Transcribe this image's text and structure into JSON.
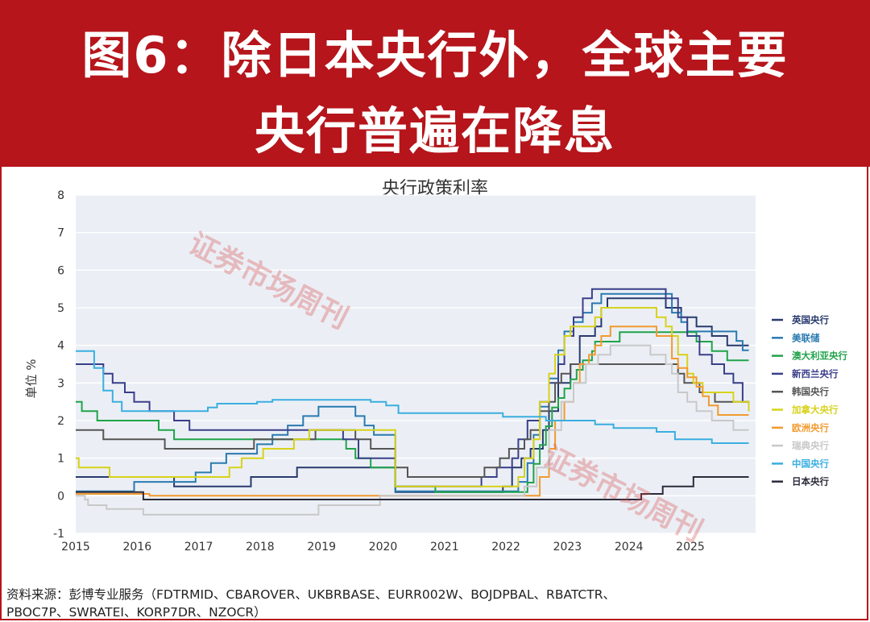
{
  "header": {
    "line1": "图6：除日本央行外，全球主要",
    "line2": "央行普遍在降息"
  },
  "watermark": "证券市场周刊",
  "source": {
    "line1": "资料来源：彭博专业服务（FDTRMID、CBAROVER、UKBRBASE、EURR002W、BOJDPBAL、RBATCTR、",
    "line2": "PBOC7P、SWRATEI、KORP7DR、NZOCR）"
  },
  "chart_data": {
    "type": "line",
    "title": "央行政策利率",
    "ylabel": "单位 %",
    "xlabel": "",
    "xlim": [
      2015,
      2026
    ],
    "ylim": [
      -1,
      8
    ],
    "x_ticks": [
      "2015",
      "2016",
      "2017",
      "2018",
      "2019",
      "2020",
      "2021",
      "2022",
      "2023",
      "2024",
      "2025"
    ],
    "y_ticks": [
      "8",
      "7",
      "6",
      "5",
      "4",
      "3",
      "2",
      "1",
      "0",
      "-1"
    ],
    "grid": "horizontal",
    "legend": "right",
    "series": [
      {
        "name": "英国央行",
        "color": "#283a6e",
        "points": [
          [
            2015,
            0.5
          ],
          [
            2016.6,
            0.25
          ],
          [
            2017.85,
            0.5
          ],
          [
            2018.6,
            0.75
          ],
          [
            2020.2,
            0.1
          ],
          [
            2021.95,
            0.25
          ],
          [
            2022.1,
            0.75
          ],
          [
            2022.25,
            1.0
          ],
          [
            2022.4,
            1.25
          ],
          [
            2022.6,
            1.75
          ],
          [
            2022.7,
            2.25
          ],
          [
            2022.85,
            3.0
          ],
          [
            2023.05,
            3.5
          ],
          [
            2023.2,
            4.25
          ],
          [
            2023.45,
            4.5
          ],
          [
            2023.55,
            5.0
          ],
          [
            2023.65,
            5.25
          ],
          [
            2024.6,
            5.0
          ],
          [
            2024.85,
            4.75
          ],
          [
            2025.1,
            4.5
          ],
          [
            2025.35,
            4.25
          ],
          [
            2025.6,
            4.0
          ],
          [
            2025.95,
            4.0
          ]
        ]
      },
      {
        "name": "美联储",
        "color": "#2a7ab0",
        "points": [
          [
            2015,
            0.12
          ],
          [
            2015.95,
            0.37
          ],
          [
            2016.95,
            0.62
          ],
          [
            2017.2,
            0.87
          ],
          [
            2017.45,
            1.12
          ],
          [
            2017.95,
            1.37
          ],
          [
            2018.2,
            1.62
          ],
          [
            2018.45,
            1.87
          ],
          [
            2018.7,
            2.12
          ],
          [
            2018.95,
            2.37
          ],
          [
            2019.55,
            2.12
          ],
          [
            2019.7,
            1.87
          ],
          [
            2019.85,
            1.62
          ],
          [
            2020.2,
            0.12
          ],
          [
            2022.2,
            0.37
          ],
          [
            2022.35,
            0.87
          ],
          [
            2022.45,
            1.62
          ],
          [
            2022.55,
            2.37
          ],
          [
            2022.7,
            3.12
          ],
          [
            2022.85,
            3.87
          ],
          [
            2022.95,
            4.37
          ],
          [
            2023.1,
            4.62
          ],
          [
            2023.25,
            4.87
          ],
          [
            2023.4,
            5.12
          ],
          [
            2023.55,
            5.37
          ],
          [
            2024.7,
            4.87
          ],
          [
            2024.85,
            4.62
          ],
          [
            2024.95,
            4.37
          ],
          [
            2025.75,
            4.12
          ],
          [
            2025.85,
            3.87
          ],
          [
            2025.95,
            3.87
          ]
        ]
      },
      {
        "name": "澳大利亚央行",
        "color": "#1fa34a",
        "points": [
          [
            2015,
            2.5
          ],
          [
            2015.1,
            2.25
          ],
          [
            2015.35,
            2.0
          ],
          [
            2016.35,
            1.75
          ],
          [
            2016.6,
            1.5
          ],
          [
            2019.4,
            1.25
          ],
          [
            2019.55,
            1.0
          ],
          [
            2019.8,
            0.75
          ],
          [
            2020.2,
            0.25
          ],
          [
            2020.85,
            0.1
          ],
          [
            2022.35,
            0.35
          ],
          [
            2022.45,
            0.85
          ],
          [
            2022.55,
            1.35
          ],
          [
            2022.65,
            1.85
          ],
          [
            2022.75,
            2.35
          ],
          [
            2022.85,
            2.6
          ],
          [
            2022.95,
            2.85
          ],
          [
            2023.05,
            3.1
          ],
          [
            2023.15,
            3.35
          ],
          [
            2023.25,
            3.6
          ],
          [
            2023.4,
            3.85
          ],
          [
            2023.45,
            4.1
          ],
          [
            2023.85,
            4.35
          ],
          [
            2025.1,
            4.1
          ],
          [
            2025.35,
            3.85
          ],
          [
            2025.6,
            3.6
          ],
          [
            2025.95,
            3.6
          ]
        ]
      },
      {
        "name": "新西兰央行",
        "color": "#3a3f8a",
        "points": [
          [
            2015,
            3.5
          ],
          [
            2015.45,
            3.25
          ],
          [
            2015.6,
            3.0
          ],
          [
            2015.8,
            2.75
          ],
          [
            2015.95,
            2.5
          ],
          [
            2016.2,
            2.25
          ],
          [
            2016.6,
            2.0
          ],
          [
            2016.85,
            1.75
          ],
          [
            2019.35,
            1.5
          ],
          [
            2019.6,
            1.0
          ],
          [
            2020.2,
            0.25
          ],
          [
            2021.6,
            0.5
          ],
          [
            2021.85,
            0.75
          ],
          [
            2022.1,
            1.0
          ],
          [
            2022.2,
            1.5
          ],
          [
            2022.35,
            2.0
          ],
          [
            2022.55,
            2.5
          ],
          [
            2022.7,
            3.0
          ],
          [
            2022.85,
            3.5
          ],
          [
            2022.95,
            4.25
          ],
          [
            2023.1,
            4.75
          ],
          [
            2023.25,
            5.25
          ],
          [
            2023.4,
            5.5
          ],
          [
            2024.6,
            5.25
          ],
          [
            2024.8,
            4.75
          ],
          [
            2024.95,
            4.25
          ],
          [
            2025.15,
            3.75
          ],
          [
            2025.35,
            3.5
          ],
          [
            2025.55,
            3.25
          ],
          [
            2025.7,
            3.0
          ],
          [
            2025.85,
            2.5
          ],
          [
            2025.95,
            2.25
          ]
        ]
      },
      {
        "name": "韩国央行",
        "color": "#555555",
        "points": [
          [
            2015,
            1.75
          ],
          [
            2015.45,
            1.5
          ],
          [
            2016.45,
            1.25
          ],
          [
            2017.9,
            1.5
          ],
          [
            2018.9,
            1.75
          ],
          [
            2019.55,
            1.5
          ],
          [
            2019.8,
            1.25
          ],
          [
            2020.2,
            0.75
          ],
          [
            2020.4,
            0.5
          ],
          [
            2021.65,
            0.75
          ],
          [
            2021.9,
            1.0
          ],
          [
            2022.05,
            1.25
          ],
          [
            2022.3,
            1.5
          ],
          [
            2022.4,
            1.75
          ],
          [
            2022.55,
            2.25
          ],
          [
            2022.7,
            2.5
          ],
          [
            2022.8,
            3.0
          ],
          [
            2022.9,
            3.25
          ],
          [
            2023.05,
            3.5
          ],
          [
            2024.8,
            3.25
          ],
          [
            2024.9,
            3.0
          ],
          [
            2025.15,
            2.75
          ],
          [
            2025.4,
            2.5
          ],
          [
            2025.95,
            2.5
          ]
        ]
      },
      {
        "name": "加拿大央行",
        "color": "#d7d21a",
        "points": [
          [
            2015,
            1.0
          ],
          [
            2015.05,
            0.75
          ],
          [
            2015.55,
            0.5
          ],
          [
            2017.5,
            0.75
          ],
          [
            2017.7,
            1.0
          ],
          [
            2018.05,
            1.25
          ],
          [
            2018.55,
            1.5
          ],
          [
            2018.8,
            1.75
          ],
          [
            2020.2,
            0.25
          ],
          [
            2022.2,
            0.5
          ],
          [
            2022.3,
            1.0
          ],
          [
            2022.45,
            1.5
          ],
          [
            2022.55,
            2.5
          ],
          [
            2022.7,
            3.25
          ],
          [
            2022.8,
            3.75
          ],
          [
            2022.95,
            4.25
          ],
          [
            2023.05,
            4.5
          ],
          [
            2023.45,
            4.75
          ],
          [
            2023.55,
            5.0
          ],
          [
            2024.45,
            4.75
          ],
          [
            2024.6,
            4.5
          ],
          [
            2024.7,
            4.25
          ],
          [
            2024.8,
            3.75
          ],
          [
            2024.95,
            3.25
          ],
          [
            2025.05,
            3.0
          ],
          [
            2025.2,
            2.75
          ],
          [
            2025.7,
            2.5
          ],
          [
            2025.95,
            2.25
          ]
        ]
      },
      {
        "name": "欧洲央行",
        "color": "#f29a2e",
        "points": [
          [
            2015,
            0.05
          ],
          [
            2016.2,
            0.0
          ],
          [
            2022.55,
            0.5
          ],
          [
            2022.7,
            1.25
          ],
          [
            2022.8,
            2.0
          ],
          [
            2022.95,
            2.5
          ],
          [
            2023.1,
            3.0
          ],
          [
            2023.2,
            3.5
          ],
          [
            2023.35,
            3.75
          ],
          [
            2023.45,
            4.0
          ],
          [
            2023.55,
            4.25
          ],
          [
            2023.7,
            4.5
          ],
          [
            2024.45,
            4.25
          ],
          [
            2024.7,
            3.65
          ],
          [
            2024.8,
            3.4
          ],
          [
            2024.95,
            3.15
          ],
          [
            2025.1,
            2.9
          ],
          [
            2025.2,
            2.65
          ],
          [
            2025.3,
            2.4
          ],
          [
            2025.45,
            2.15
          ],
          [
            2025.95,
            2.15
          ]
        ]
      },
      {
        "name": "瑞典央行",
        "color": "#c8c8c8",
        "points": [
          [
            2015,
            0.0
          ],
          [
            2015.15,
            -0.1
          ],
          [
            2015.2,
            -0.25
          ],
          [
            2015.5,
            -0.35
          ],
          [
            2016.1,
            -0.5
          ],
          [
            2018.95,
            -0.25
          ],
          [
            2019.95,
            0.0
          ],
          [
            2022.3,
            0.25
          ],
          [
            2022.5,
            0.75
          ],
          [
            2022.7,
            1.75
          ],
          [
            2022.9,
            2.5
          ],
          [
            2023.1,
            3.0
          ],
          [
            2023.3,
            3.5
          ],
          [
            2023.5,
            3.75
          ],
          [
            2023.7,
            4.0
          ],
          [
            2024.35,
            3.75
          ],
          [
            2024.6,
            3.5
          ],
          [
            2024.7,
            3.25
          ],
          [
            2024.8,
            2.75
          ],
          [
            2024.95,
            2.5
          ],
          [
            2025.1,
            2.25
          ],
          [
            2025.35,
            2.0
          ],
          [
            2025.7,
            1.75
          ],
          [
            2025.95,
            1.75
          ]
        ]
      },
      {
        "name": "中国央行",
        "color": "#3aaee0",
        "points": [
          [
            2015,
            3.85
          ],
          [
            2015.3,
            3.4
          ],
          [
            2015.45,
            2.8
          ],
          [
            2015.6,
            2.5
          ],
          [
            2015.75,
            2.25
          ],
          [
            2017.15,
            2.35
          ],
          [
            2017.3,
            2.45
          ],
          [
            2017.95,
            2.5
          ],
          [
            2018.2,
            2.55
          ],
          [
            2019.8,
            2.5
          ],
          [
            2020.05,
            2.4
          ],
          [
            2020.25,
            2.2
          ],
          [
            2021.95,
            2.1
          ],
          [
            2022.65,
            2.0
          ],
          [
            2023.45,
            1.9
          ],
          [
            2023.75,
            1.8
          ],
          [
            2024.45,
            1.7
          ],
          [
            2024.75,
            1.5
          ],
          [
            2025.35,
            1.4
          ],
          [
            2025.95,
            1.4
          ]
        ]
      },
      {
        "name": "日本央行",
        "color": "#2b2b3b",
        "points": [
          [
            2015,
            0.1
          ],
          [
            2016.1,
            -0.1
          ],
          [
            2024.2,
            0.05
          ],
          [
            2024.55,
            0.25
          ],
          [
            2025.05,
            0.5
          ],
          [
            2025.95,
            0.5
          ]
        ]
      }
    ]
  }
}
